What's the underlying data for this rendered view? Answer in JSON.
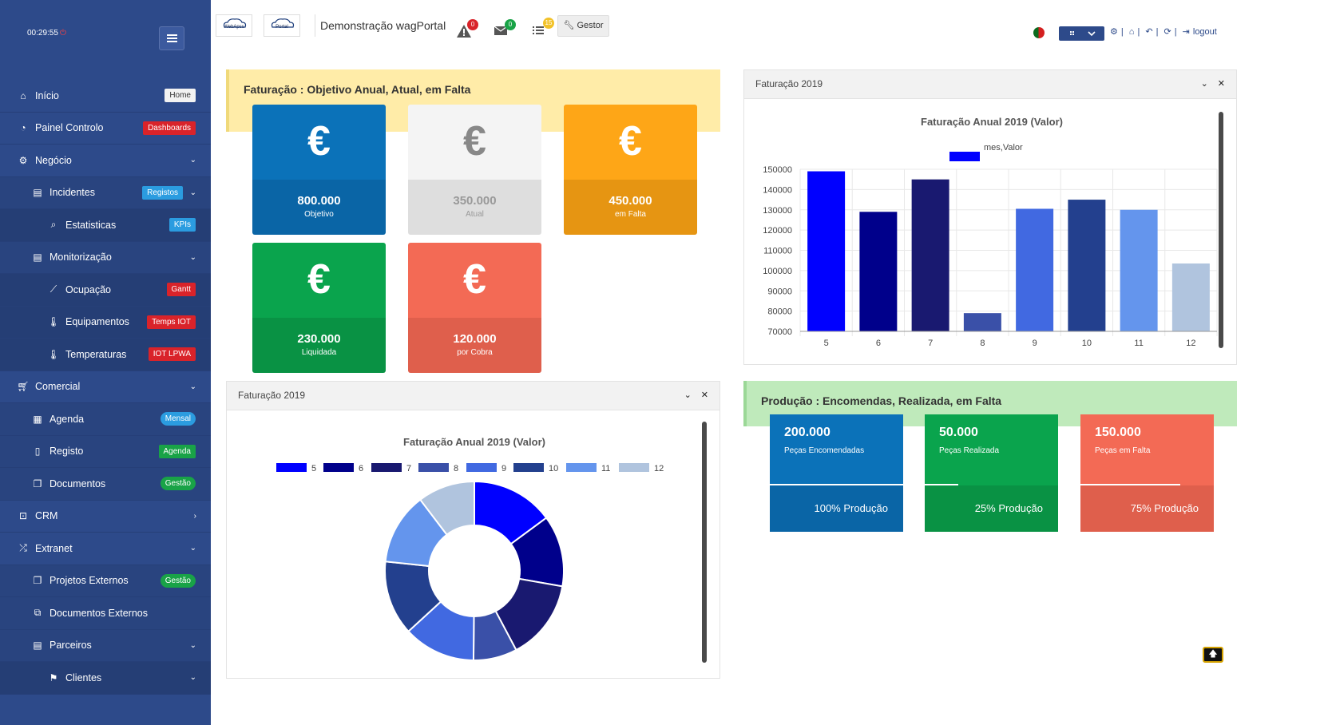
{
  "session": {
    "timer": "00:29:55"
  },
  "sidebar": {
    "items": [
      {
        "label": "Início",
        "badge": "Home",
        "icon": "home-icon"
      },
      {
        "label": "Painel Controlo",
        "badge": "Dashboards",
        "icon": "dashboard-icon"
      },
      {
        "label": "Negócio",
        "icon": "gear-icon"
      },
      {
        "label": "Incidentes",
        "badge": "Registos",
        "icon": "archive-icon"
      },
      {
        "label": "Estatisticas",
        "badge": "KPIs",
        "icon": "search-icon"
      },
      {
        "label": "Monitorização",
        "icon": "archive-icon"
      },
      {
        "label": "Ocupação",
        "badge": "Gantt",
        "icon": "line-chart-icon"
      },
      {
        "label": "Equipamentos",
        "badge": "Temps IOT",
        "icon": "thermometer-icon"
      },
      {
        "label": "Temperaturas",
        "badge": "IOT LPWA",
        "icon": "thermometer-icon"
      },
      {
        "label": "Comercial",
        "icon": "cart-icon"
      },
      {
        "label": "Agenda",
        "badge": "Mensal",
        "icon": "calendar-icon"
      },
      {
        "label": "Registo",
        "badge": "Agenda",
        "icon": "tablet-icon"
      },
      {
        "label": "Documentos",
        "badge": "Gestão",
        "icon": "book-icon"
      },
      {
        "label": "CRM",
        "icon": "basket-icon"
      },
      {
        "label": "Extranet",
        "icon": "shuffle-icon"
      },
      {
        "label": "Projetos Externos",
        "badge": "Gestão",
        "icon": "book-icon"
      },
      {
        "label": "Documentos Externos",
        "icon": "files-icon"
      },
      {
        "label": "Parceiros",
        "icon": "archive-icon"
      },
      {
        "label": "Clientes",
        "icon": "flag-icon"
      }
    ]
  },
  "header": {
    "title": "Demonstração wagPortal",
    "logo1": "WebApss",
    "logo2": "Portal",
    "alerts_count": "0",
    "messages_count": "0",
    "tasks_count": "15",
    "gestor_label": "Gestor",
    "logout_label": "logout"
  },
  "faturacao": {
    "banner": "Faturação : Objetivo Anual, Atual, em Falta",
    "tiles": [
      {
        "value": "800.000",
        "label": "Objetivo"
      },
      {
        "value": "350.000",
        "label": "Atual"
      },
      {
        "value": "450.000",
        "label": "em Falta"
      },
      {
        "value": "230.000",
        "label": "Liquidada"
      },
      {
        "value": "120.000",
        "label": "por Cobra"
      }
    ]
  },
  "producao": {
    "banner": "Produção : Encomendas, Realizada, em Falta",
    "tiles": [
      {
        "value": "200.000",
        "label": "Peças Encomendadas",
        "footer": "100% Produção",
        "progress": 1.0
      },
      {
        "value": "50.000",
        "label": "Peças Realizada",
        "footer": "25% Produção",
        "progress": 0.25
      },
      {
        "value": "150.000",
        "label": "Peças em Falta",
        "footer": "75% Produção",
        "progress": 0.75
      }
    ]
  },
  "bar_panel": {
    "title": "Faturação 2019"
  },
  "pie_panel": {
    "title": "Faturação 2019"
  },
  "chart_data": [
    {
      "type": "bar",
      "title": "Faturação Anual 2019 (Valor)",
      "categories": [
        "5",
        "6",
        "7",
        "8",
        "9",
        "10",
        "11",
        "12"
      ],
      "series": [
        {
          "name": "mes,Valor",
          "values": [
            149000,
            129000,
            145000,
            79000,
            130500,
            135000,
            130000,
            103500
          ]
        }
      ],
      "colors": [
        "#0000ff",
        "#00008b",
        "#191970",
        "#3a50a8",
        "#4169e1",
        "#23408e",
        "#6495ed",
        "#b0c4de"
      ],
      "ylim": [
        70000,
        150000
      ],
      "yticks": [
        70000,
        80000,
        90000,
        100000,
        110000,
        120000,
        130000,
        140000,
        150000
      ],
      "legend": "top",
      "grid": true
    },
    {
      "type": "pie",
      "title": "Faturação Anual 2019 (Valor)",
      "categories": [
        "5",
        "6",
        "7",
        "8",
        "9",
        "10",
        "11",
        "12"
      ],
      "values": [
        149000,
        129000,
        145000,
        79000,
        130500,
        135000,
        130000,
        103500
      ],
      "colors": [
        "#0000ff",
        "#00008b",
        "#191970",
        "#3a50a8",
        "#4169e1",
        "#23408e",
        "#6495ed",
        "#b0c4de"
      ],
      "legend": "top",
      "donut": true
    }
  ]
}
